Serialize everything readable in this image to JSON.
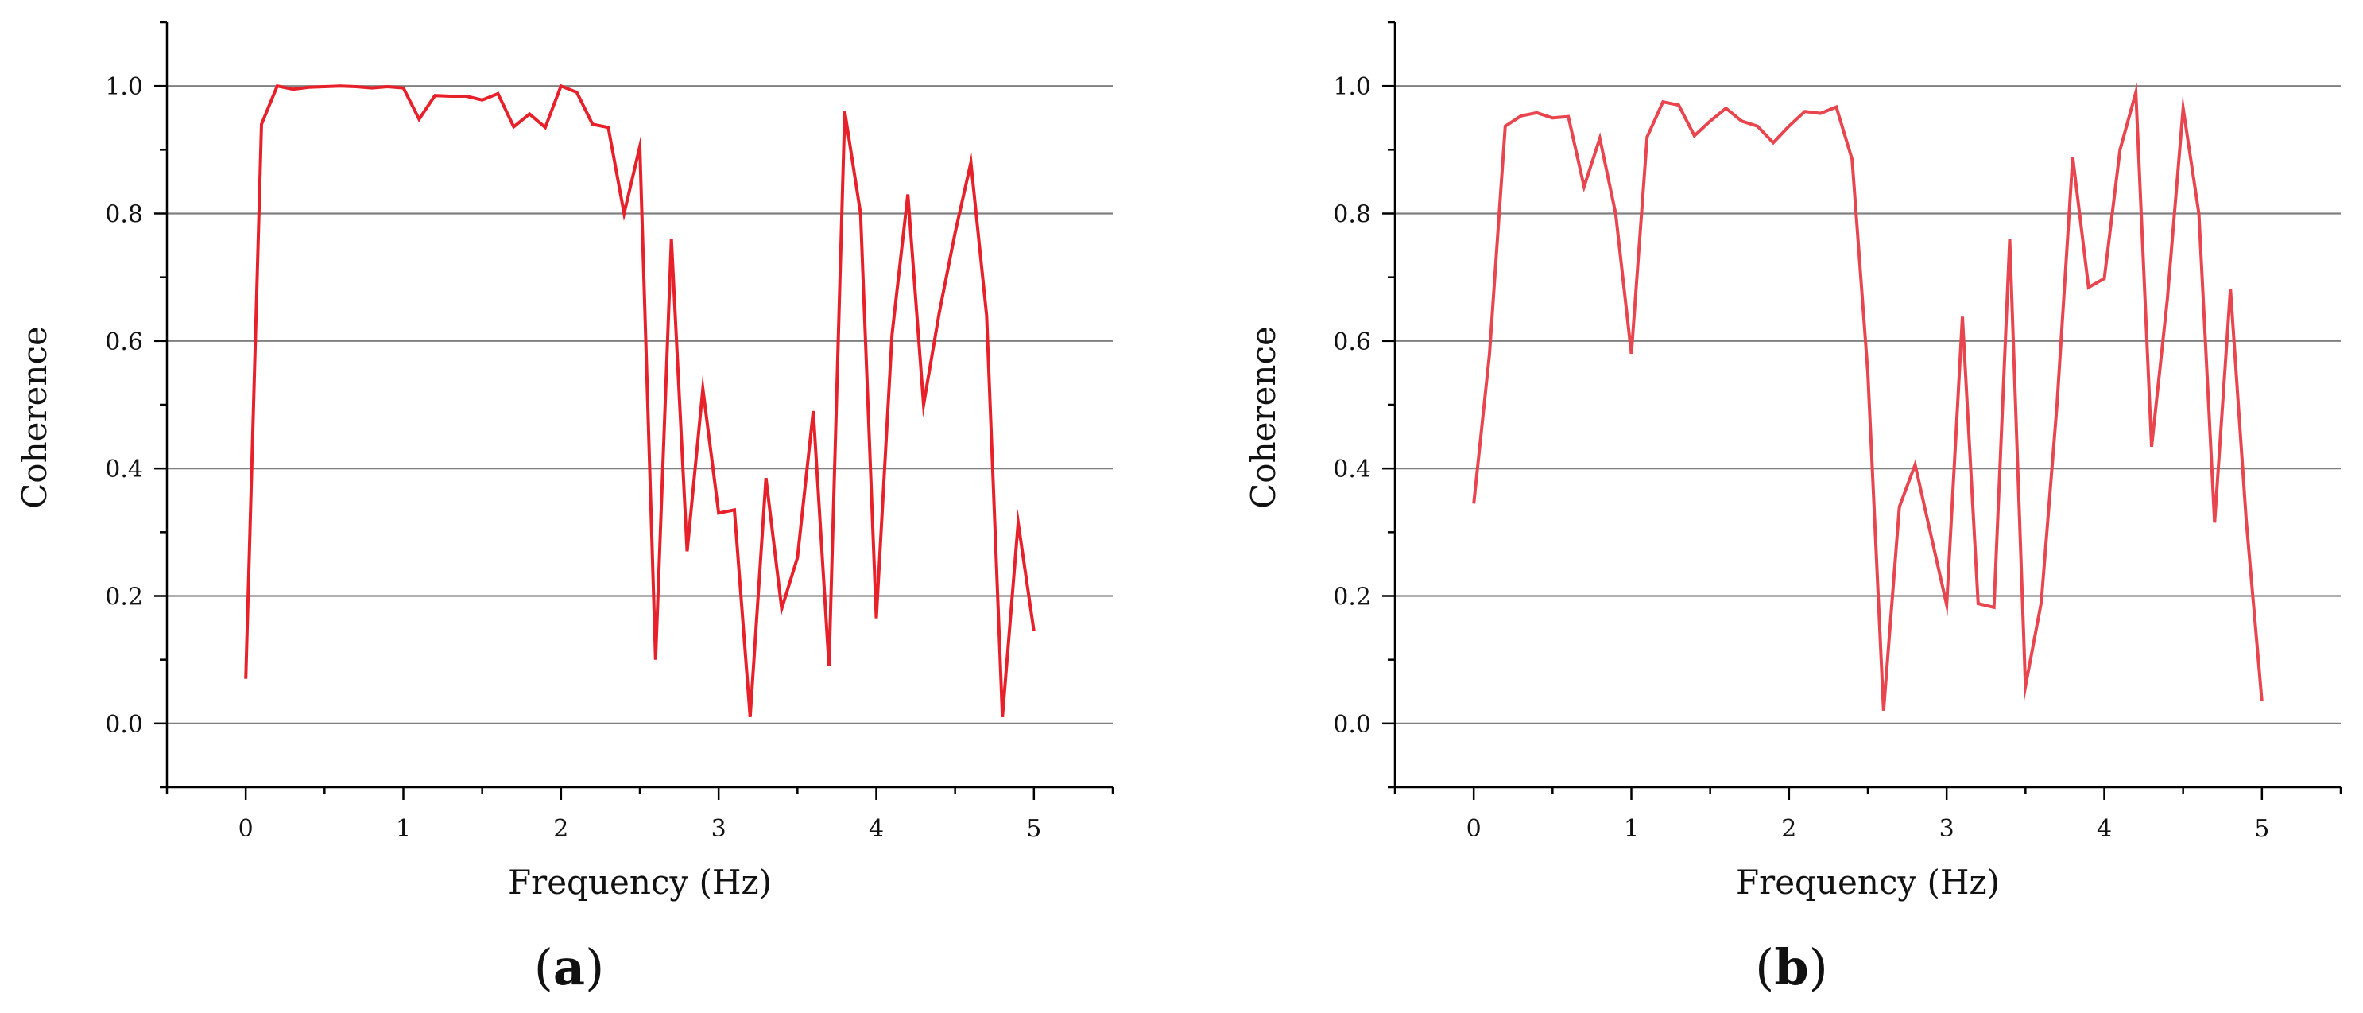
{
  "chart_data": [
    {
      "type": "line",
      "panel_label": "a",
      "xlabel": "Frequency (Hz)",
      "ylabel": "Coherence",
      "xlim": [
        -0.5,
        5.5
      ],
      "ylim": [
        -0.1,
        1.1
      ],
      "xticks": [
        0,
        1,
        2,
        3,
        4,
        5
      ],
      "yticks": [
        0.0,
        0.2,
        0.4,
        0.6,
        0.8,
        1.0
      ],
      "xtick_labels": [
        "0",
        "1",
        "2",
        "3",
        "4",
        "5"
      ],
      "ytick_labels": [
        "0.0",
        "0.2",
        "0.4",
        "0.6",
        "0.8",
        "1.0"
      ],
      "grid": "horizontal",
      "line_color": "#e8202a",
      "series": [
        {
          "x": [
            0.0,
            0.1,
            0.2,
            0.3,
            0.4,
            0.5,
            0.6,
            0.7,
            0.8,
            0.9,
            1.0,
            1.1,
            1.2,
            1.3,
            1.4,
            1.5,
            1.6,
            1.7,
            1.8,
            1.9,
            2.0,
            2.1,
            2.2,
            2.3,
            2.4,
            2.5,
            2.6,
            2.7,
            2.8,
            2.9,
            3.0,
            3.1,
            3.2,
            3.3,
            3.4,
            3.5,
            3.6,
            3.7,
            3.8,
            3.9,
            4.0,
            4.1,
            4.2,
            4.3,
            4.4,
            4.5,
            4.6,
            4.7,
            4.8,
            4.9,
            5.0
          ],
          "y": [
            0.07,
            0.94,
            1.0,
            0.995,
            0.998,
            0.999,
            1.0,
            0.999,
            0.997,
            0.999,
            0.997,
            0.948,
            0.985,
            0.984,
            0.984,
            0.978,
            0.988,
            0.936,
            0.956,
            0.935,
            1.0,
            0.99,
            0.94,
            0.935,
            0.8,
            0.905,
            0.1,
            0.76,
            0.27,
            0.525,
            0.33,
            0.335,
            0.01,
            0.385,
            0.18,
            0.26,
            0.49,
            0.09,
            0.96,
            0.8,
            0.165,
            0.61,
            0.83,
            0.5,
            0.645,
            0.77,
            0.88,
            0.64,
            0.01,
            0.315,
            0.145
          ]
        }
      ]
    },
    {
      "type": "line",
      "panel_label": "b",
      "xlabel": "Frequency (Hz)",
      "ylabel": "Coherence",
      "xlim": [
        -0.5,
        5.5
      ],
      "ylim": [
        -0.1,
        1.1
      ],
      "xticks": [
        0,
        1,
        2,
        3,
        4,
        5
      ],
      "yticks": [
        0.0,
        0.2,
        0.4,
        0.6,
        0.8,
        1.0
      ],
      "xtick_labels": [
        "0",
        "1",
        "2",
        "3",
        "4",
        "5"
      ],
      "ytick_labels": [
        "0.0",
        "0.2",
        "0.4",
        "0.6",
        "0.8",
        "1.0"
      ],
      "grid": "horizontal",
      "line_color": "#e8454f",
      "series": [
        {
          "x": [
            0.0,
            0.1,
            0.2,
            0.3,
            0.4,
            0.5,
            0.6,
            0.7,
            0.8,
            0.9,
            1.0,
            1.1,
            1.2,
            1.3,
            1.4,
            1.5,
            1.6,
            1.7,
            1.8,
            1.9,
            2.0,
            2.1,
            2.2,
            2.3,
            2.4,
            2.5,
            2.6,
            2.7,
            2.8,
            2.9,
            3.0,
            3.1,
            3.2,
            3.3,
            3.4,
            3.5,
            3.6,
            3.7,
            3.8,
            3.9,
            4.0,
            4.1,
            4.2,
            4.3,
            4.4,
            4.5,
            4.6,
            4.7,
            4.8,
            4.9,
            5.0
          ],
          "y": [
            0.345,
            0.58,
            0.937,
            0.953,
            0.958,
            0.95,
            0.952,
            0.842,
            0.918,
            0.8,
            0.58,
            0.92,
            0.975,
            0.97,
            0.922,
            0.945,
            0.965,
            0.945,
            0.937,
            0.911,
            0.937,
            0.96,
            0.957,
            0.967,
            0.885,
            0.55,
            0.02,
            0.34,
            0.406,
            0.296,
            0.186,
            0.638,
            0.188,
            0.182,
            0.76,
            0.058,
            0.19,
            0.5,
            0.888,
            0.684,
            0.698,
            0.9,
            0.99,
            0.434,
            0.665,
            0.965,
            0.8,
            0.315,
            0.682,
            0.32,
            0.035
          ]
        }
      ]
    }
  ]
}
